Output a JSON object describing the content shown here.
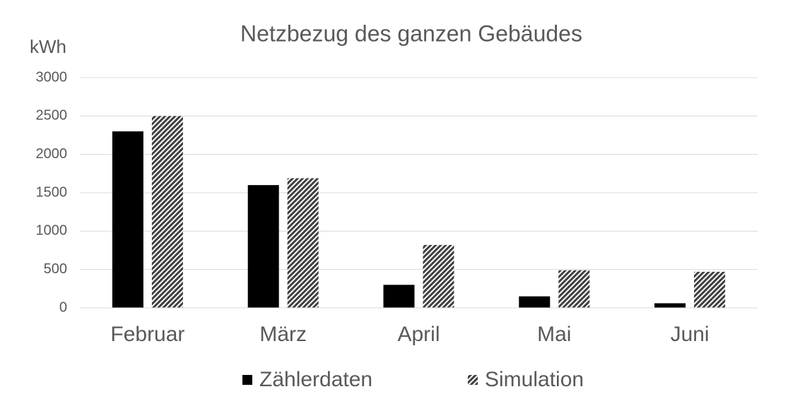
{
  "chart_data": {
    "type": "bar",
    "title": "Netzbezug des ganzen Gebäudes",
    "y_label": "kWh",
    "categories": [
      "Februar",
      "März",
      "April",
      "Mai",
      "Juni"
    ],
    "series": [
      {
        "name": "Zählerdaten",
        "color": "#000000",
        "pattern": "solid",
        "values": [
          2300,
          1600,
          300,
          150,
          60
        ]
      },
      {
        "name": "Simulation",
        "color": "#404040",
        "pattern": "hatch",
        "values": [
          2500,
          1690,
          820,
          490,
          470
        ]
      }
    ],
    "ylim": [
      0,
      3000
    ],
    "yticks": [
      0,
      500,
      1000,
      1500,
      2000,
      2500,
      3000
    ],
    "grid": true,
    "legend": "bottom"
  }
}
